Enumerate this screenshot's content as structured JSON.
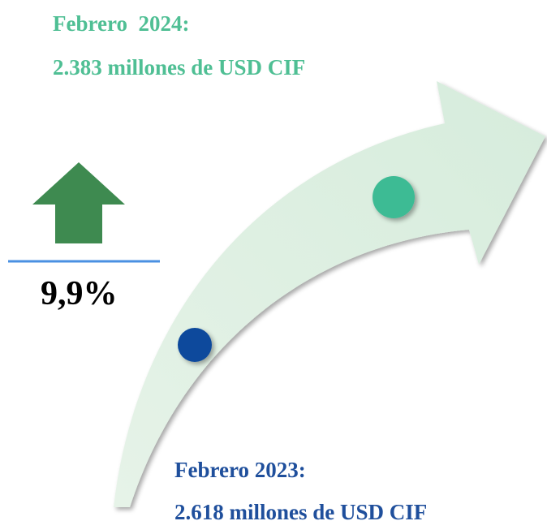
{
  "top_label": {
    "title": "Febrero  2024:",
    "value": "2.383 millones de USD CIF"
  },
  "bottom_label": {
    "title": "Febrero 2023:",
    "value": "2.618 millones de USD CIF"
  },
  "change": "9,9%"
}
